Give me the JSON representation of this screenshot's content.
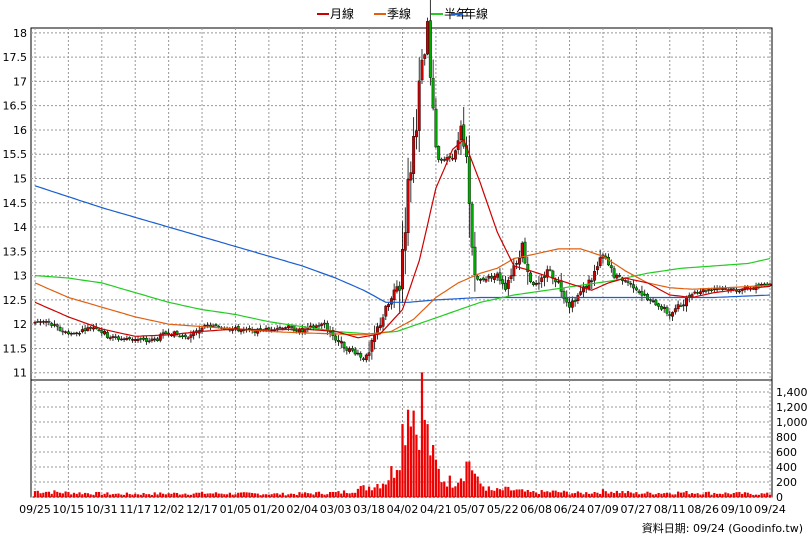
{
  "colors": {
    "ma_month": "#cc0000",
    "ma_quarter": "#e06010",
    "ma_half": "#22cc22",
    "ma_year": "#1a5fd0",
    "candle_up": "#cc0000",
    "candle_down": "#00aa00",
    "volume": "#ee0000",
    "grid": "#999999"
  },
  "legend": [
    {
      "key": "ma_month",
      "label": "月線"
    },
    {
      "key": "ma_quarter",
      "label": "季線"
    },
    {
      "key": "ma_half",
      "label": "半年"
    },
    {
      "key": "ma_year",
      "label": "年線"
    }
  ],
  "footer": {
    "source": "資料日期: 09/24 (Goodinfo.tw)"
  },
  "chart_data": {
    "type": "candlestick",
    "price_ticks": [
      "18",
      "17.5",
      "17",
      "16.5",
      "16",
      "15.5",
      "15",
      "14.5",
      "14",
      "13.5",
      "13",
      "12.5",
      "12",
      "11.5",
      "11"
    ],
    "price_range": [
      10.85,
      18.1
    ],
    "volume_ticks": [
      "1,400",
      "1,200",
      "1,000",
      "800",
      "600",
      "400",
      "200",
      "0"
    ],
    "volume_range": [
      0,
      1400
    ],
    "x_tick_labels": [
      "09/25",
      "10/15",
      "10/31",
      "11/17",
      "12/02",
      "12/17",
      "01/05",
      "01/20",
      "02/04",
      "03/03",
      "03/18",
      "04/02",
      "04/21",
      "05/07",
      "05/22",
      "06/08",
      "06/24",
      "07/09",
      "07/27",
      "08/11",
      "08/26",
      "09/10",
      "09/24"
    ],
    "x_tick_positions": [
      0,
      12,
      24,
      36,
      48,
      60,
      72,
      84,
      96,
      108,
      120,
      132,
      144,
      156,
      168,
      180,
      192,
      204,
      216,
      228,
      240,
      252,
      264
    ],
    "n_sessions": 265,
    "price_anchors": [
      [
        0,
        12.05
      ],
      [
        4,
        12.05
      ],
      [
        10,
        11.85
      ],
      [
        14,
        11.8
      ],
      [
        18,
        11.9
      ],
      [
        22,
        11.95
      ],
      [
        26,
        11.75
      ],
      [
        30,
        11.7
      ],
      [
        36,
        11.7
      ],
      [
        40,
        11.65
      ],
      [
        44,
        11.7
      ],
      [
        48,
        11.85
      ],
      [
        52,
        11.75
      ],
      [
        56,
        11.75
      ],
      [
        60,
        11.95
      ],
      [
        66,
        11.95
      ],
      [
        72,
        11.9
      ],
      [
        78,
        11.85
      ],
      [
        84,
        11.9
      ],
      [
        90,
        11.95
      ],
      [
        96,
        11.85
      ],
      [
        100,
        11.95
      ],
      [
        104,
        12.0
      ],
      [
        108,
        11.7
      ],
      [
        112,
        11.5
      ],
      [
        116,
        11.4
      ],
      [
        118,
        11.3
      ],
      [
        120,
        11.35
      ],
      [
        123,
        11.9
      ],
      [
        126,
        12.3
      ],
      [
        129,
        12.6
      ],
      [
        131,
        12.9
      ],
      [
        133,
        14.2
      ],
      [
        135,
        15.3
      ],
      [
        137,
        16.3
      ],
      [
        139,
        17.3
      ],
      [
        141,
        17.8
      ],
      [
        143,
        16.2
      ],
      [
        145,
        15.4
      ],
      [
        148,
        15.4
      ],
      [
        151,
        15.5
      ],
      [
        153,
        15.9
      ],
      [
        155,
        15.2
      ],
      [
        157,
        13.6
      ],
      [
        159,
        12.9
      ],
      [
        162,
        12.95
      ],
      [
        166,
        13.0
      ],
      [
        169,
        12.8
      ],
      [
        172,
        13.2
      ],
      [
        175,
        13.6
      ],
      [
        178,
        12.9
      ],
      [
        181,
        12.75
      ],
      [
        184,
        13.15
      ],
      [
        188,
        12.85
      ],
      [
        192,
        12.4
      ],
      [
        196,
        12.65
      ],
      [
        200,
        12.95
      ],
      [
        204,
        13.4
      ],
      [
        208,
        13.0
      ],
      [
        212,
        12.9
      ],
      [
        216,
        12.75
      ],
      [
        220,
        12.5
      ],
      [
        224,
        12.4
      ],
      [
        228,
        12.2
      ],
      [
        232,
        12.4
      ],
      [
        236,
        12.65
      ],
      [
        240,
        12.7
      ],
      [
        246,
        12.75
      ],
      [
        252,
        12.7
      ],
      [
        258,
        12.75
      ],
      [
        264,
        12.85
      ]
    ],
    "ma_month_anchors": [
      [
        0,
        12.45
      ],
      [
        12,
        12.15
      ],
      [
        24,
        11.9
      ],
      [
        36,
        11.75
      ],
      [
        48,
        11.78
      ],
      [
        60,
        11.85
      ],
      [
        72,
        11.9
      ],
      [
        84,
        11.88
      ],
      [
        96,
        11.9
      ],
      [
        108,
        11.85
      ],
      [
        116,
        11.72
      ],
      [
        124,
        11.8
      ],
      [
        132,
        12.3
      ],
      [
        138,
        13.3
      ],
      [
        144,
        14.8
      ],
      [
        150,
        15.6
      ],
      [
        154,
        15.8
      ],
      [
        160,
        14.9
      ],
      [
        166,
        13.9
      ],
      [
        172,
        13.2
      ],
      [
        178,
        13.1
      ],
      [
        186,
        12.95
      ],
      [
        194,
        12.8
      ],
      [
        200,
        12.7
      ],
      [
        206,
        12.85
      ],
      [
        212,
        12.95
      ],
      [
        220,
        12.85
      ],
      [
        228,
        12.6
      ],
      [
        236,
        12.55
      ],
      [
        244,
        12.65
      ],
      [
        254,
        12.72
      ],
      [
        264,
        12.78
      ]
    ],
    "ma_quarter_anchors": [
      [
        0,
        12.85
      ],
      [
        12,
        12.55
      ],
      [
        24,
        12.35
      ],
      [
        36,
        12.15
      ],
      [
        48,
        12.0
      ],
      [
        60,
        11.95
      ],
      [
        72,
        11.9
      ],
      [
        84,
        11.85
      ],
      [
        96,
        11.82
      ],
      [
        108,
        11.8
      ],
      [
        118,
        11.78
      ],
      [
        128,
        11.85
      ],
      [
        136,
        12.1
      ],
      [
        144,
        12.55
      ],
      [
        152,
        12.85
      ],
      [
        160,
        13.05
      ],
      [
        166,
        13.15
      ],
      [
        172,
        13.35
      ],
      [
        180,
        13.45
      ],
      [
        188,
        13.55
      ],
      [
        196,
        13.55
      ],
      [
        204,
        13.4
      ],
      [
        212,
        13.1
      ],
      [
        220,
        12.85
      ],
      [
        228,
        12.75
      ],
      [
        236,
        12.72
      ],
      [
        248,
        12.75
      ],
      [
        264,
        12.8
      ]
    ],
    "ma_half_anchors": [
      [
        0,
        13.0
      ],
      [
        12,
        12.95
      ],
      [
        24,
        12.85
      ],
      [
        36,
        12.65
      ],
      [
        48,
        12.45
      ],
      [
        60,
        12.3
      ],
      [
        72,
        12.2
      ],
      [
        84,
        12.05
      ],
      [
        96,
        11.95
      ],
      [
        108,
        11.85
      ],
      [
        120,
        11.8
      ],
      [
        130,
        11.85
      ],
      [
        140,
        12.05
      ],
      [
        150,
        12.25
      ],
      [
        160,
        12.45
      ],
      [
        172,
        12.6
      ],
      [
        184,
        12.7
      ],
      [
        196,
        12.8
      ],
      [
        208,
        12.9
      ],
      [
        220,
        13.05
      ],
      [
        232,
        13.15
      ],
      [
        244,
        13.2
      ],
      [
        256,
        13.25
      ],
      [
        264,
        13.35
      ]
    ],
    "ma_year_anchors": [
      [
        0,
        14.85
      ],
      [
        24,
        14.4
      ],
      [
        48,
        14.0
      ],
      [
        72,
        13.6
      ],
      [
        96,
        13.2
      ],
      [
        108,
        12.95
      ],
      [
        118,
        12.7
      ],
      [
        126,
        12.45
      ],
      [
        134,
        12.45
      ],
      [
        144,
        12.5
      ],
      [
        160,
        12.55
      ],
      [
        176,
        12.55
      ],
      [
        196,
        12.55
      ],
      [
        220,
        12.55
      ],
      [
        244,
        12.55
      ],
      [
        264,
        12.6
      ]
    ],
    "volume_anchors": [
      [
        0,
        80
      ],
      [
        10,
        60
      ],
      [
        30,
        40
      ],
      [
        60,
        50
      ],
      [
        90,
        40
      ],
      [
        110,
        60
      ],
      [
        118,
        120
      ],
      [
        122,
        160
      ],
      [
        126,
        220
      ],
      [
        129,
        380
      ],
      [
        131,
        650
      ],
      [
        133,
        1100
      ],
      [
        135,
        1450
      ],
      [
        137,
        900
      ],
      [
        139,
        1350
      ],
      [
        141,
        800
      ],
      [
        143,
        500
      ],
      [
        146,
        250
      ],
      [
        150,
        200
      ],
      [
        153,
        300
      ],
      [
        156,
        500
      ],
      [
        159,
        200
      ],
      [
        164,
        80
      ],
      [
        170,
        100
      ],
      [
        178,
        60
      ],
      [
        186,
        70
      ],
      [
        196,
        50
      ],
      [
        206,
        80
      ],
      [
        216,
        50
      ],
      [
        232,
        60
      ],
      [
        248,
        50
      ],
      [
        264,
        40
      ]
    ]
  }
}
